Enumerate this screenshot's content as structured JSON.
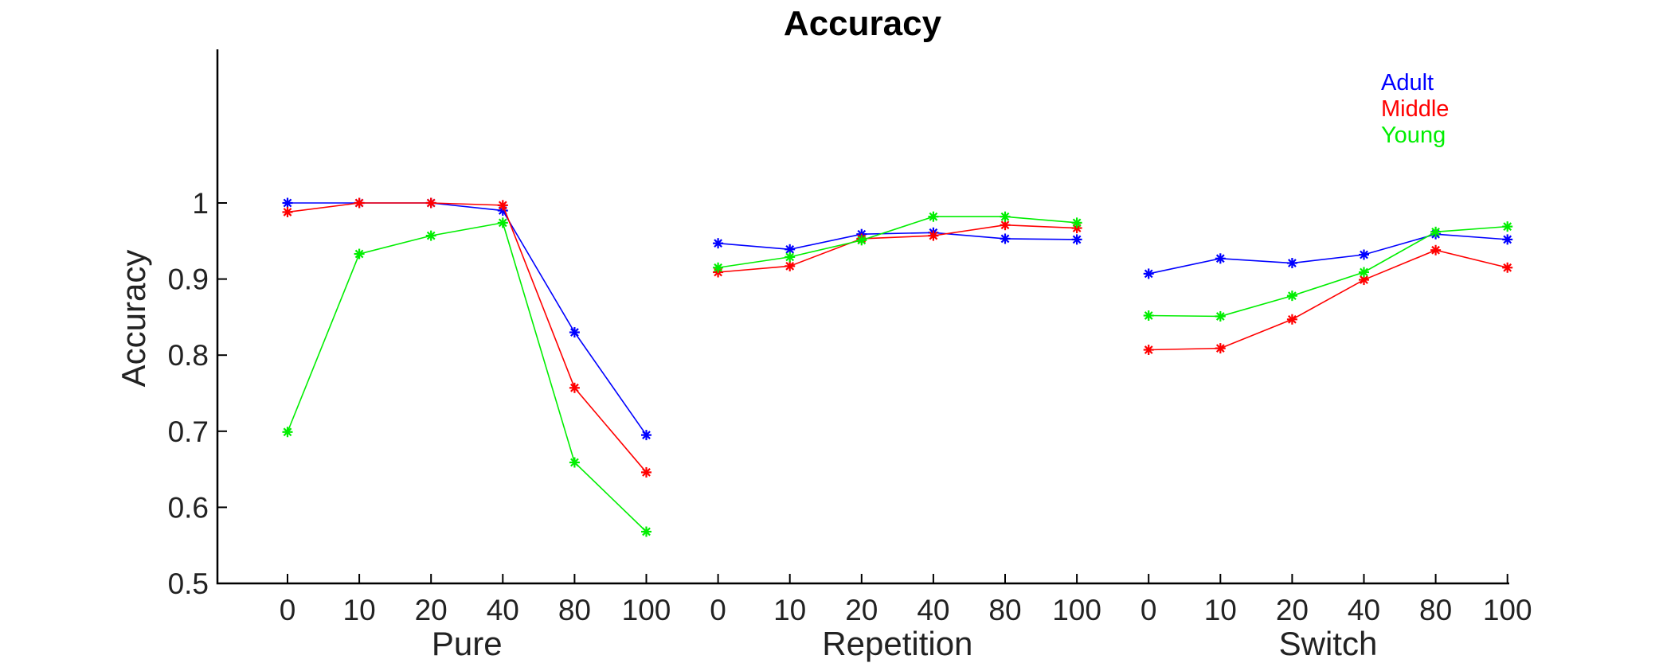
{
  "chart_data": {
    "type": "line",
    "title": "Accuracy",
    "ylabel": "Accuracy",
    "xlabel": "",
    "ylim": [
      0.5,
      1.0
    ],
    "ytick_labels": [
      "0.5",
      "0.6",
      "0.7",
      "0.8",
      "0.9",
      "1"
    ],
    "yticks": [
      0.5,
      0.6,
      0.7,
      0.8,
      0.9,
      1.0
    ],
    "groups": [
      "Pure",
      "Repetition",
      "Switch"
    ],
    "categories": [
      "0",
      "10",
      "20",
      "40",
      "80",
      "100"
    ],
    "legend_position": "top-right",
    "series": [
      {
        "name": "Adult",
        "color": "#0000ff",
        "marker": "asterisk",
        "values": [
          [
            1.0,
            1.0,
            1.0,
            0.99,
            0.83,
            0.695
          ],
          [
            0.947,
            0.939,
            0.959,
            0.961,
            0.953,
            0.952
          ],
          [
            0.907,
            0.927,
            0.921,
            0.932,
            0.959,
            0.952
          ]
        ]
      },
      {
        "name": "Middle",
        "color": "#ff0000",
        "marker": "asterisk",
        "values": [
          [
            0.988,
            1.0,
            1.0,
            0.997,
            0.757,
            0.646
          ],
          [
            0.909,
            0.917,
            0.953,
            0.957,
            0.971,
            0.967
          ],
          [
            0.807,
            0.809,
            0.847,
            0.899,
            0.938,
            0.915
          ]
        ]
      },
      {
        "name": "Young",
        "color": "#00ee00",
        "marker": "asterisk",
        "values": [
          [
            0.699,
            0.933,
            0.957,
            0.974,
            0.659,
            0.568
          ],
          [
            0.915,
            0.929,
            0.951,
            0.982,
            0.982,
            0.974
          ],
          [
            0.852,
            0.851,
            0.878,
            0.909,
            0.962,
            0.969
          ]
        ]
      }
    ]
  }
}
